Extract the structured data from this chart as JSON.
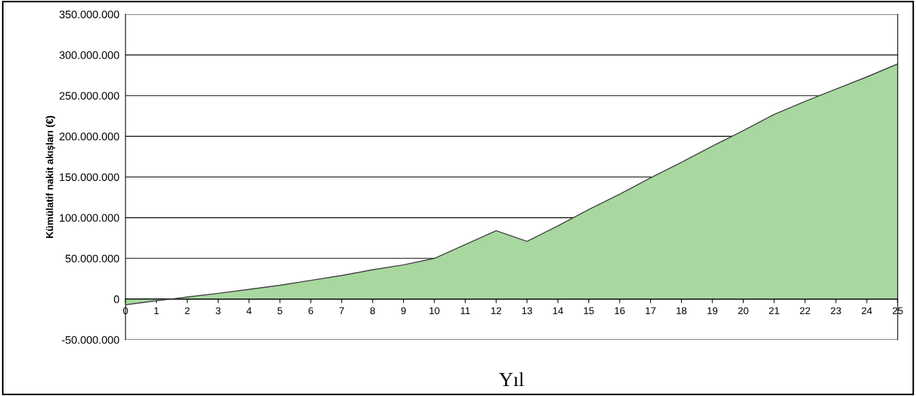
{
  "chart_data": {
    "type": "area",
    "xlabel": "Yıl",
    "ylabel": "Kümülatif nakit akışları (€)",
    "x": [
      0,
      1,
      2,
      3,
      4,
      5,
      6,
      7,
      8,
      9,
      10,
      11,
      12,
      13,
      14,
      15,
      16,
      17,
      18,
      19,
      20,
      21,
      22,
      23,
      24,
      25
    ],
    "series": [
      {
        "color": "#a8d8a0",
        "values": [
          -7000000,
          -2000000,
          2500000,
          7000000,
          12000000,
          17000000,
          23000000,
          29000000,
          36000000,
          42000000,
          50000000,
          67000000,
          84000000,
          71000000,
          90000000,
          110000000,
          129000000,
          149000000,
          168000000,
          188000000,
          207000000,
          227000000,
          243000000,
          258000000,
          273000000,
          289000000
        ]
      }
    ],
    "xlim": [
      0,
      25
    ],
    "xticks": [
      0,
      1,
      2,
      3,
      4,
      5,
      6,
      7,
      8,
      9,
      10,
      11,
      12,
      13,
      14,
      15,
      16,
      17,
      18,
      19,
      20,
      21,
      22,
      23,
      24,
      25
    ],
    "ylim": [
      -50000000,
      350000000
    ],
    "yticks": [
      {
        "value": -50000000,
        "label": "-50.000.000"
      },
      {
        "value": 0,
        "label": "0"
      },
      {
        "value": 50000000,
        "label": "50.000.000"
      },
      {
        "value": 100000000,
        "label": "100.000.000"
      },
      {
        "value": 150000000,
        "label": "150.000.000"
      },
      {
        "value": 200000000,
        "label": "200.000.000"
      },
      {
        "value": 250000000,
        "label": "250.000.000"
      },
      {
        "value": 300000000,
        "label": "300.000.000"
      },
      {
        "value": 350000000,
        "label": "350.000.000"
      }
    ],
    "grid": "y",
    "legend": false,
    "marker": "none",
    "line_style": "solid"
  }
}
